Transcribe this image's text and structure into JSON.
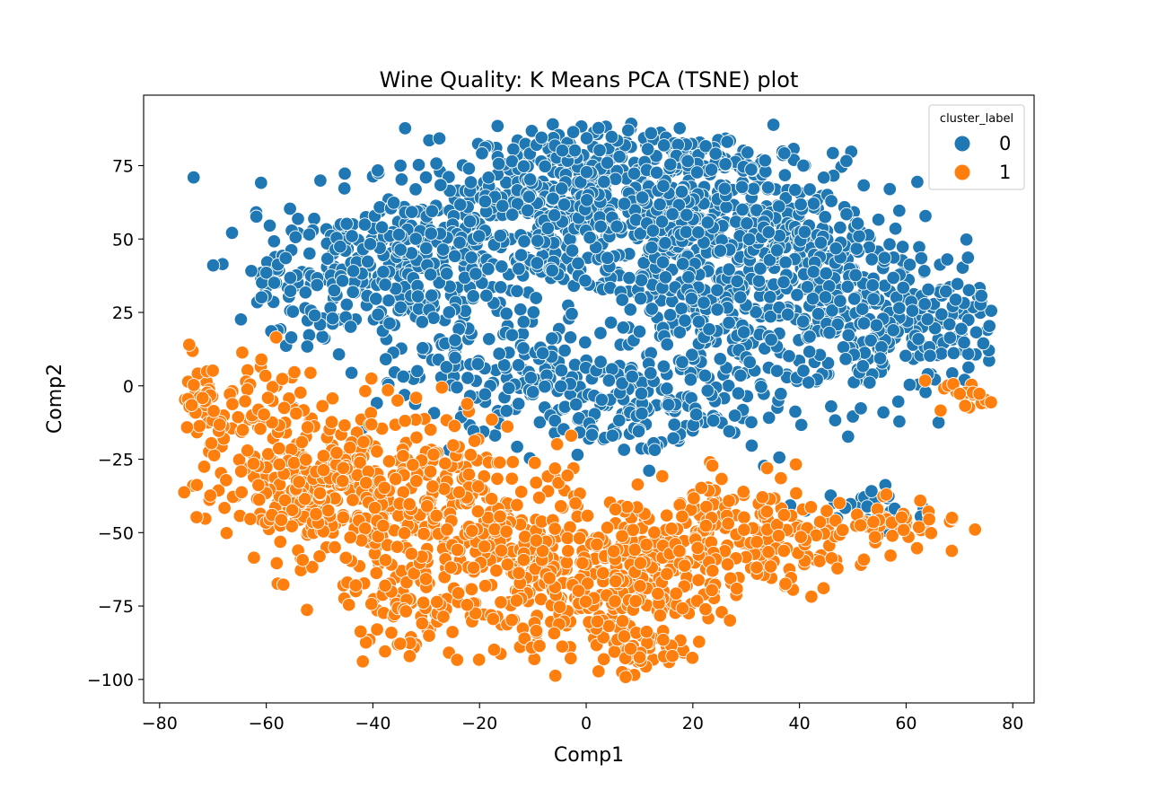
{
  "chart_data": {
    "type": "scatter",
    "title": "Wine Quality: K Means PCA (TSNE) plot",
    "xlabel": "Comp1",
    "ylabel": "Comp2",
    "xlim": [
      -83,
      84
    ],
    "ylim": [
      -108,
      99
    ],
    "xticks": [
      -80,
      -60,
      -40,
      -20,
      0,
      20,
      40,
      60,
      80
    ],
    "yticks": [
      -100,
      -75,
      -50,
      -25,
      0,
      25,
      50,
      75
    ],
    "grid": false,
    "legend": {
      "title": "cluster_label",
      "placement": "top-right"
    },
    "series": [
      {
        "name": "0",
        "color": "#1f77b4",
        "clusters": [
          {
            "cx": -4,
            "cy": 56,
            "sx": 20,
            "sy": 13,
            "n": 520
          },
          {
            "cx": -35,
            "cy": 38,
            "sx": 12,
            "sy": 13,
            "n": 240
          },
          {
            "cx": 28,
            "cy": 55,
            "sx": 13,
            "sy": 12,
            "n": 260
          },
          {
            "cx": 26,
            "cy": 22,
            "sx": 13,
            "sy": 11,
            "n": 210
          },
          {
            "cx": 55,
            "cy": 20,
            "sx": 10,
            "sy": 13,
            "n": 200
          },
          {
            "cx": 10,
            "cy": -8,
            "sx": 14,
            "sy": 9,
            "n": 170
          },
          {
            "cx": -15,
            "cy": 6,
            "sx": 12,
            "sy": 9,
            "n": 130
          },
          {
            "cx": 42,
            "cy": 45,
            "sx": 12,
            "sy": 9,
            "n": 110
          },
          {
            "cx": -52,
            "cy": 38,
            "sx": 7,
            "sy": 9,
            "n": 70
          },
          {
            "cx": 0,
            "cy": 80,
            "sx": 14,
            "sy": 5,
            "n": 90
          },
          {
            "cx": 24,
            "cy": 78,
            "sx": 7,
            "sy": 4,
            "n": 40
          },
          {
            "cx": 53,
            "cy": -42,
            "sx": 6,
            "sy": 4,
            "n": 30
          },
          {
            "cx": 70,
            "cy": 20,
            "sx": 4,
            "sy": 8,
            "n": 40
          }
        ]
      },
      {
        "name": "1",
        "color": "#ff7f0e",
        "clusters": [
          {
            "cx": -55,
            "cy": -35,
            "sx": 9,
            "sy": 11,
            "n": 200
          },
          {
            "cx": -62,
            "cy": -5,
            "sx": 6,
            "sy": 9,
            "n": 60
          },
          {
            "cx": -35,
            "cy": -32,
            "sx": 12,
            "sy": 14,
            "n": 230
          },
          {
            "cx": -15,
            "cy": -55,
            "sx": 15,
            "sy": 14,
            "n": 240
          },
          {
            "cx": 0,
            "cy": -72,
            "sx": 12,
            "sy": 12,
            "n": 170
          },
          {
            "cx": -30,
            "cy": -75,
            "sx": 8,
            "sy": 8,
            "n": 80
          },
          {
            "cx": 15,
            "cy": -62,
            "sx": 10,
            "sy": 13,
            "n": 140
          },
          {
            "cx": 10,
            "cy": -90,
            "sx": 5,
            "sy": 5,
            "n": 30
          },
          {
            "cx": 30,
            "cy": -48,
            "sx": 9,
            "sy": 9,
            "n": 110
          },
          {
            "cx": 55,
            "cy": -48,
            "sx": 7,
            "sy": 4,
            "n": 60
          },
          {
            "cx": -72,
            "cy": -8,
            "sx": 3,
            "sy": 6,
            "n": 30
          },
          {
            "cx": 72,
            "cy": -5,
            "sx": 4,
            "sy": 5,
            "n": 30
          },
          {
            "cx": 38,
            "cy": -62,
            "sx": 5,
            "sy": 4,
            "n": 25
          }
        ]
      }
    ]
  }
}
